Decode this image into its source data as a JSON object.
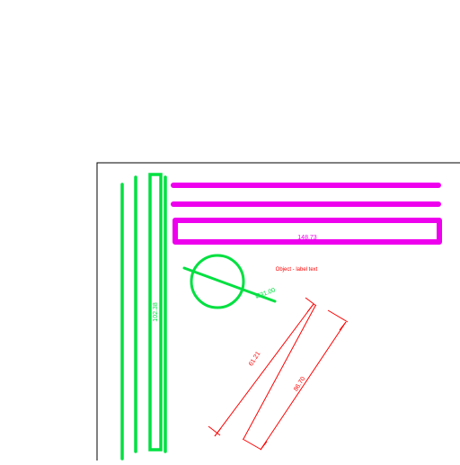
{
  "colors": {
    "background": "#ffffff",
    "frame": "#000000",
    "green": "#00e040",
    "magenta": "#ee00ee",
    "dimension": "#ff0000"
  },
  "drawing": {
    "vertical_label": "102.38",
    "horizontal_label": "148.73",
    "diameter_label": "Ø31.00",
    "text_label": "Object - label text",
    "dimension_a_label": "61.21",
    "dimension_b_label": "86.70"
  }
}
